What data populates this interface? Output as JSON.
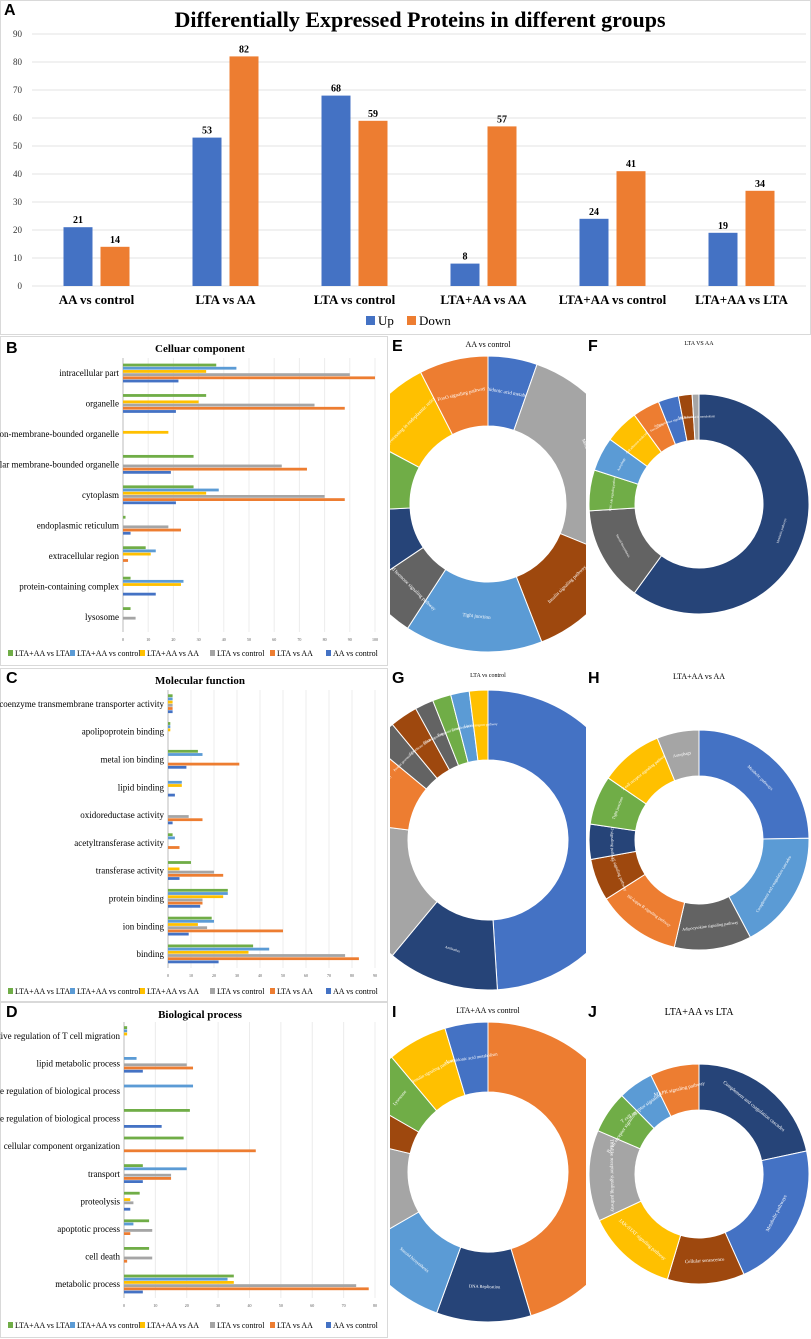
{
  "colors": {
    "blue": "#4472C4",
    "orange": "#ED7D31",
    "gray": "#A5A5A5",
    "yellow": "#FFC000",
    "lightblue": "#5B9BD5",
    "green": "#70AD47",
    "navy": "#264478",
    "brown": "#9E480E",
    "darkgray": "#636363"
  },
  "chart_data": [
    {
      "panel": "A",
      "type": "bar",
      "title": "Differentially Expressed Proteins in different groups",
      "categories": [
        "AA vs control",
        "LTA vs AA",
        "LTA vs control",
        "LTA+AA vs AA",
        "LTA+AA vs control",
        "LTA+AA vs LTA"
      ],
      "series": [
        {
          "name": "Up",
          "values": [
            21,
            53,
            68,
            8,
            24,
            19
          ]
        },
        {
          "name": "Down",
          "values": [
            14,
            82,
            59,
            57,
            41,
            34
          ]
        }
      ],
      "ylim": [
        0,
        90
      ],
      "yticks": [
        "0",
        "10",
        "20",
        "30",
        "40",
        "50",
        "60",
        "70",
        "80",
        "90"
      ]
    },
    {
      "panel": "B",
      "type": "bar",
      "orientation": "horizontal",
      "title": "Celluar component",
      "categories": [
        "intracellular part",
        "organelle",
        "intracellular non-membrane-bounded organelle",
        "intracellular membrane-bounded organelle",
        "cytoplasm",
        "endoplasmic reticulum",
        "extracellular region",
        "protein-containing complex",
        "lysosome"
      ],
      "series": [
        {
          "name": "LTA+AA vs LTA",
          "values": [
            37,
            33,
            0,
            28,
            28,
            1,
            9,
            3,
            3
          ]
        },
        {
          "name": "LTA+AA vs control",
          "values": [
            45,
            0,
            0,
            0,
            38,
            0,
            13,
            24,
            0
          ]
        },
        {
          "name": "LTA+AA vs AA",
          "values": [
            33,
            30,
            18,
            0,
            33,
            0,
            11,
            23,
            0
          ]
        },
        {
          "name": "LTA vs control",
          "values": [
            90,
            76,
            0,
            63,
            80,
            18,
            0,
            0,
            5
          ]
        },
        {
          "name": "LTA vs AA",
          "values": [
            100,
            88,
            0,
            73,
            88,
            23,
            2,
            0,
            0
          ]
        },
        {
          "name": "AA vs control",
          "values": [
            22,
            21,
            0,
            19,
            21,
            3,
            0,
            13,
            0
          ]
        }
      ],
      "xlim": [
        0,
        100
      ],
      "xticks": [
        "0",
        "10",
        "20",
        "30",
        "40",
        "50",
        "60",
        "70",
        "80",
        "90",
        "100"
      ]
    },
    {
      "panel": "C",
      "type": "bar",
      "orientation": "horizontal",
      "title": "Molecular function",
      "categories": [
        "coenzyme transmembrane transporter activity",
        "apolipoprotein binding",
        "metal ion binding",
        "lipid binding",
        "oxidoreductase activity",
        "acetyltransferase activity",
        "transferase activity",
        "protein binding",
        "ion binding",
        "binding"
      ],
      "series": [
        {
          "name": "LTA+AA vs LTA",
          "values": [
            2,
            1,
            13,
            0,
            0,
            2,
            10,
            26,
            19,
            37
          ]
        },
        {
          "name": "LTA+AA vs control",
          "values": [
            2,
            1,
            15,
            6,
            0,
            3,
            0,
            26,
            20,
            44
          ]
        },
        {
          "name": "LTA+AA vs AA",
          "values": [
            2,
            1,
            0,
            6,
            0,
            0,
            5,
            24,
            13,
            35
          ]
        },
        {
          "name": "LTA vs control",
          "values": [
            2,
            0,
            0,
            0,
            9,
            0,
            20,
            15,
            17,
            77
          ]
        },
        {
          "name": "LTA vs AA",
          "values": [
            2,
            0,
            31,
            0,
            15,
            5,
            24,
            15,
            50,
            83
          ]
        },
        {
          "name": "AA vs control",
          "values": [
            2,
            0,
            8,
            3,
            2,
            0,
            5,
            14,
            9,
            22
          ]
        }
      ],
      "xlim": [
        0,
        90
      ],
      "xticks": [
        "0",
        "10",
        "20",
        "30",
        "40",
        "50",
        "60",
        "70",
        "80",
        "90"
      ]
    },
    {
      "panel": "D",
      "type": "bar",
      "orientation": "horizontal",
      "title": "Biological process",
      "categories": [
        "negative regulation of T cell migration",
        "lipid metabolic process",
        "negative regulation of biological process",
        "positive regulation of biological process",
        "cellular component organization",
        "transport",
        "proteolysis",
        "apoptotic process",
        "cell death",
        "metabolic process"
      ],
      "series": [
        {
          "name": "LTA+AA vs LTA",
          "values": [
            1,
            0,
            0,
            21,
            19,
            6,
            5,
            8,
            8,
            35
          ]
        },
        {
          "name": "LTA+AA vs control",
          "values": [
            1,
            4,
            22,
            0,
            0,
            20,
            0,
            3,
            0,
            33
          ]
        },
        {
          "name": "LTA+AA vs AA",
          "values": [
            1,
            0,
            0,
            0,
            0,
            0,
            2,
            0,
            0,
            35
          ]
        },
        {
          "name": "LTA vs control",
          "values": [
            0,
            20,
            0,
            0,
            0,
            15,
            3,
            9,
            9,
            74
          ]
        },
        {
          "name": "LTA vs AA",
          "values": [
            0,
            22,
            0,
            0,
            42,
            15,
            0,
            2,
            1,
            78
          ]
        },
        {
          "name": "AA vs control",
          "values": [
            0,
            6,
            0,
            12,
            0,
            6,
            2,
            0,
            0,
            6
          ]
        }
      ],
      "xlim": [
        0,
        80
      ],
      "xticks": [
        "0",
        "10",
        "20",
        "30",
        "40",
        "50",
        "60",
        "70",
        "80"
      ]
    },
    {
      "panel": "E",
      "type": "pie",
      "title": "AA vs control",
      "labels": [
        "Arachidonic acid metabolism",
        "Metabolic pathways",
        "Insulin signaling pathway",
        "Tight junction",
        "Thyroid hormone signaling pathway",
        "Calcium signaling pathway",
        "AMPK signaling pathway",
        "Protein processing in endoplasmic reticulum",
        "FoxO signaling pathway"
      ],
      "values": [
        5,
        24,
        12,
        14,
        6,
        8,
        8,
        9,
        7
      ]
    },
    {
      "panel": "F",
      "type": "pie",
      "title": "LTA VS AA",
      "labels": [
        "Metabolic pathways",
        "Steroid biosynthesis",
        "PI3K-Akt signaling pathway",
        "Autophagy",
        "Cell adhesion molecules",
        "Peroxisome",
        "Adipocytokine signaling pathway",
        "Endocytosis",
        "Arachidonic acid metabolism"
      ],
      "values": [
        60,
        14,
        6,
        5,
        5,
        4,
        3,
        2,
        1
      ]
    },
    {
      "panel": "G",
      "type": "pie",
      "title": "LTA vs control",
      "labels": [
        "Metabolic pathways",
        "Antibodies",
        "Steroid biosynthesis",
        "PI3K-Akt signaling pathway",
        "Protein processing in ER",
        "Glutathione metabolism",
        "PPAR signaling pathway",
        "Fatty acid metabolism",
        "Complement cascade",
        "Lipid transport pathway"
      ],
      "values": [
        49,
        12,
        16,
        9,
        3,
        3,
        2,
        2,
        2,
        2
      ]
    },
    {
      "panel": "H",
      "type": "pie",
      "title": "LTA+AA vs AA",
      "labels": [
        "Metabolic pathways",
        "Complement and coagulation cascades",
        "Adipocytokine signaling pathway",
        "NF-kappa B signaling pathway",
        "IL-17 signaling pathway",
        "FoxO signaling pathway",
        "Tight junction",
        "T cell receptor signaling pathway",
        "Autophagy"
      ],
      "values": [
        24,
        17,
        11,
        12,
        6,
        5,
        7,
        9,
        6
      ]
    },
    {
      "panel": "I",
      "type": "pie",
      "title": "LTA+AA vs control",
      "labels": [
        "Metabolic pathways",
        "DNA Replication",
        "Steroid biosynthesis",
        "PI3K-Akt signaling pathway",
        "Metabolism of xenobiotics by cytochrome P450",
        "Lysosome",
        "Insulin signaling pathway",
        "Arachidonic acid metabolism"
      ],
      "values": [
        49,
        11,
        12,
        13,
        5,
        6,
        7,
        5
      ]
    },
    {
      "panel": "J",
      "type": "pie",
      "title": "LTA+AA vs LTA",
      "labels": [
        "Complement and coagulation cascades",
        "Metabolic pathways",
        "Cellular senescence",
        "JAK-STAT signaling pathway",
        "Toll-like receptor signaling pathway",
        "B cell receptor signaling pathway",
        "T cell receptor signaling pathway",
        "MAPK signaling pathway"
      ],
      "values": [
        21,
        21,
        11,
        13,
        13,
        6,
        5,
        7
      ]
    }
  ]
}
